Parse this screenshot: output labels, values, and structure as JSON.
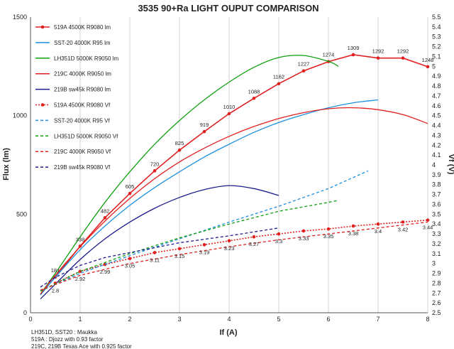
{
  "chart_data": {
    "type": "line",
    "title": "3535 90+Ra LIGHT OUPUT COMPARISON",
    "xlabel": "If (A)",
    "ylabel": "Flux (lm)",
    "y2label": "Vf (V)",
    "xlim": [
      0,
      8
    ],
    "ylim": [
      0,
      1500
    ],
    "y2lim": [
      2.5,
      5.5
    ],
    "x_ticks": [
      "0",
      "1",
      "2",
      "3",
      "4",
      "5",
      "6",
      "7",
      "8"
    ],
    "y_ticks": [
      "0",
      "500",
      "1000",
      "1500"
    ],
    "y2_ticks": [
      "2.5",
      "2.6",
      "2.7",
      "2.8",
      "2.9",
      "3",
      "3.1",
      "3.2",
      "3.3",
      "3.4",
      "3.5",
      "3.6",
      "3.7",
      "3.8",
      "3.9",
      "4",
      "4.1",
      "4.2",
      "4.3",
      "4.4",
      "4.5",
      "4.6",
      "4.7",
      "4.8",
      "4.9",
      "5",
      "5.1",
      "5.2",
      "5.3",
      "5.4",
      "5.5"
    ],
    "grid": "vertical",
    "legend_position": "top-left",
    "notes": [
      "LH351D, SST20 : Maukka",
      "519A : Djozz with 0.93 factor",
      "219C, 219B Texas Ace with 0.925 factor"
    ],
    "series": [
      {
        "name": "519A 4500K R9080 lm",
        "axis": "left",
        "color": "#e02020",
        "dash": "solid",
        "marker": true,
        "x": [
          0.5,
          1,
          1.5,
          2,
          2.5,
          3,
          3.5,
          4,
          4.5,
          5,
          5.5,
          6,
          6.5,
          7,
          7.5,
          8
        ],
        "y": [
          181,
          338,
          482,
          605,
          720,
          825,
          919,
          1010,
          1088,
          1162,
          1227,
          1274,
          1309,
          1292,
          1292,
          1248
        ],
        "labels": [
          "181",
          "338",
          "482",
          "605",
          "720",
          "825",
          "919",
          "1010",
          "1088",
          "1162",
          "1227",
          "1274",
          "1309",
          "1292",
          "1292",
          "1248"
        ]
      },
      {
        "name": "SST-20 4000K R95 lm",
        "axis": "left",
        "color": "#1e90e0",
        "dash": "solid",
        "marker": false,
        "x": [
          0.2,
          0.5,
          1,
          1.5,
          2,
          2.5,
          3,
          3.5,
          4,
          4.5,
          5,
          5.5,
          6,
          6.5,
          7
        ],
        "y": [
          90,
          180,
          320,
          440,
          545,
          635,
          715,
          790,
          855,
          915,
          965,
          1005,
          1040,
          1065,
          1080
        ],
        "labels": []
      },
      {
        "name": "LH351D 5000K R9050 lm",
        "axis": "left",
        "color": "#10a010",
        "dash": "solid",
        "marker": false,
        "x": [
          0.2,
          0.5,
          1,
          1.5,
          2,
          2.5,
          3,
          3.5,
          4,
          4.5,
          5,
          5.5,
          6,
          6.2
        ],
        "y": [
          95,
          200,
          385,
          560,
          715,
          855,
          975,
          1080,
          1170,
          1245,
          1295,
          1305,
          1275,
          1250
        ],
        "labels": []
      },
      {
        "name": "219C 4000K R9050 lm",
        "axis": "left",
        "color": "#e02020",
        "dash": "solid",
        "marker": false,
        "x": [
          0.2,
          0.5,
          1,
          1.5,
          2,
          2.5,
          3,
          3.5,
          4,
          4.5,
          5,
          5.5,
          6,
          6.5,
          7,
          7.5,
          8
        ],
        "y": [
          95,
          190,
          335,
          465,
          580,
          680,
          765,
          835,
          895,
          945,
          985,
          1015,
          1035,
          1040,
          1030,
          1005,
          960
        ],
        "labels": []
      },
      {
        "name": "219B sw45k R9080 lm",
        "axis": "left",
        "color": "#1c1c8c",
        "dash": "solid",
        "marker": false,
        "x": [
          0.2,
          0.5,
          1,
          1.5,
          2,
          2.5,
          3,
          3.5,
          4,
          4.5,
          5
        ],
        "y": [
          70,
          145,
          270,
          375,
          460,
          530,
          585,
          625,
          645,
          630,
          595
        ],
        "labels": []
      },
      {
        "name": "519A 4500K R9080 Vf",
        "axis": "right",
        "color": "#e02020",
        "dash": "dotted",
        "marker": true,
        "x": [
          0.5,
          1,
          1.5,
          2,
          2.5,
          3,
          3.5,
          4,
          4.5,
          5,
          5.5,
          6,
          6.5,
          7,
          7.5,
          8
        ],
        "y": [
          2.8,
          2.92,
          2.99,
          3.05,
          3.11,
          3.15,
          3.19,
          3.23,
          3.27,
          3.3,
          3.33,
          3.35,
          3.38,
          3.4,
          3.42,
          3.44
        ],
        "labels": [
          "2.8",
          "2.92",
          "2.99",
          "3.05",
          "3.11",
          "3.15",
          "3.19",
          "3.23",
          "3.27",
          "3.3",
          "3.33",
          "3.35",
          "3.38",
          "3.4",
          "3.42",
          "3.44"
        ]
      },
      {
        "name": "SST-20 4000K R95 Vf",
        "axis": "right",
        "color": "#1e90e0",
        "dash": "dashed",
        "marker": false,
        "x": [
          0.2,
          1,
          2,
          3,
          4,
          5,
          6,
          6.8
        ],
        "y": [
          2.72,
          2.9,
          3.08,
          3.25,
          3.42,
          3.58,
          3.76,
          3.94
        ],
        "labels": []
      },
      {
        "name": "LH351D 5000K R9050 Vf",
        "axis": "right",
        "color": "#10a010",
        "dash": "dashed",
        "marker": false,
        "x": [
          0.2,
          1,
          2,
          3,
          4,
          5,
          6,
          6.2
        ],
        "y": [
          2.72,
          2.92,
          3.1,
          3.26,
          3.4,
          3.53,
          3.62,
          3.64
        ],
        "labels": []
      },
      {
        "name": "219C 4000K R9050 Vf",
        "axis": "right",
        "color": "#e02020",
        "dash": "dashed",
        "marker": false,
        "x": [
          0.2,
          1,
          2,
          3,
          4,
          5,
          6,
          7,
          8
        ],
        "y": [
          2.73,
          2.88,
          3.0,
          3.09,
          3.17,
          3.24,
          3.3,
          3.36,
          3.42
        ],
        "labels": []
      },
      {
        "name": "219B sw45k R9080 Vf",
        "axis": "right",
        "color": "#1c1c8c",
        "dash": "dashed",
        "marker": false,
        "x": [
          0.2,
          0.5,
          1,
          1.5,
          2,
          3,
          4,
          5
        ],
        "y": [
          2.76,
          2.86,
          2.98,
          3.06,
          3.11,
          3.21,
          3.28,
          3.36
        ],
        "labels": []
      }
    ]
  }
}
